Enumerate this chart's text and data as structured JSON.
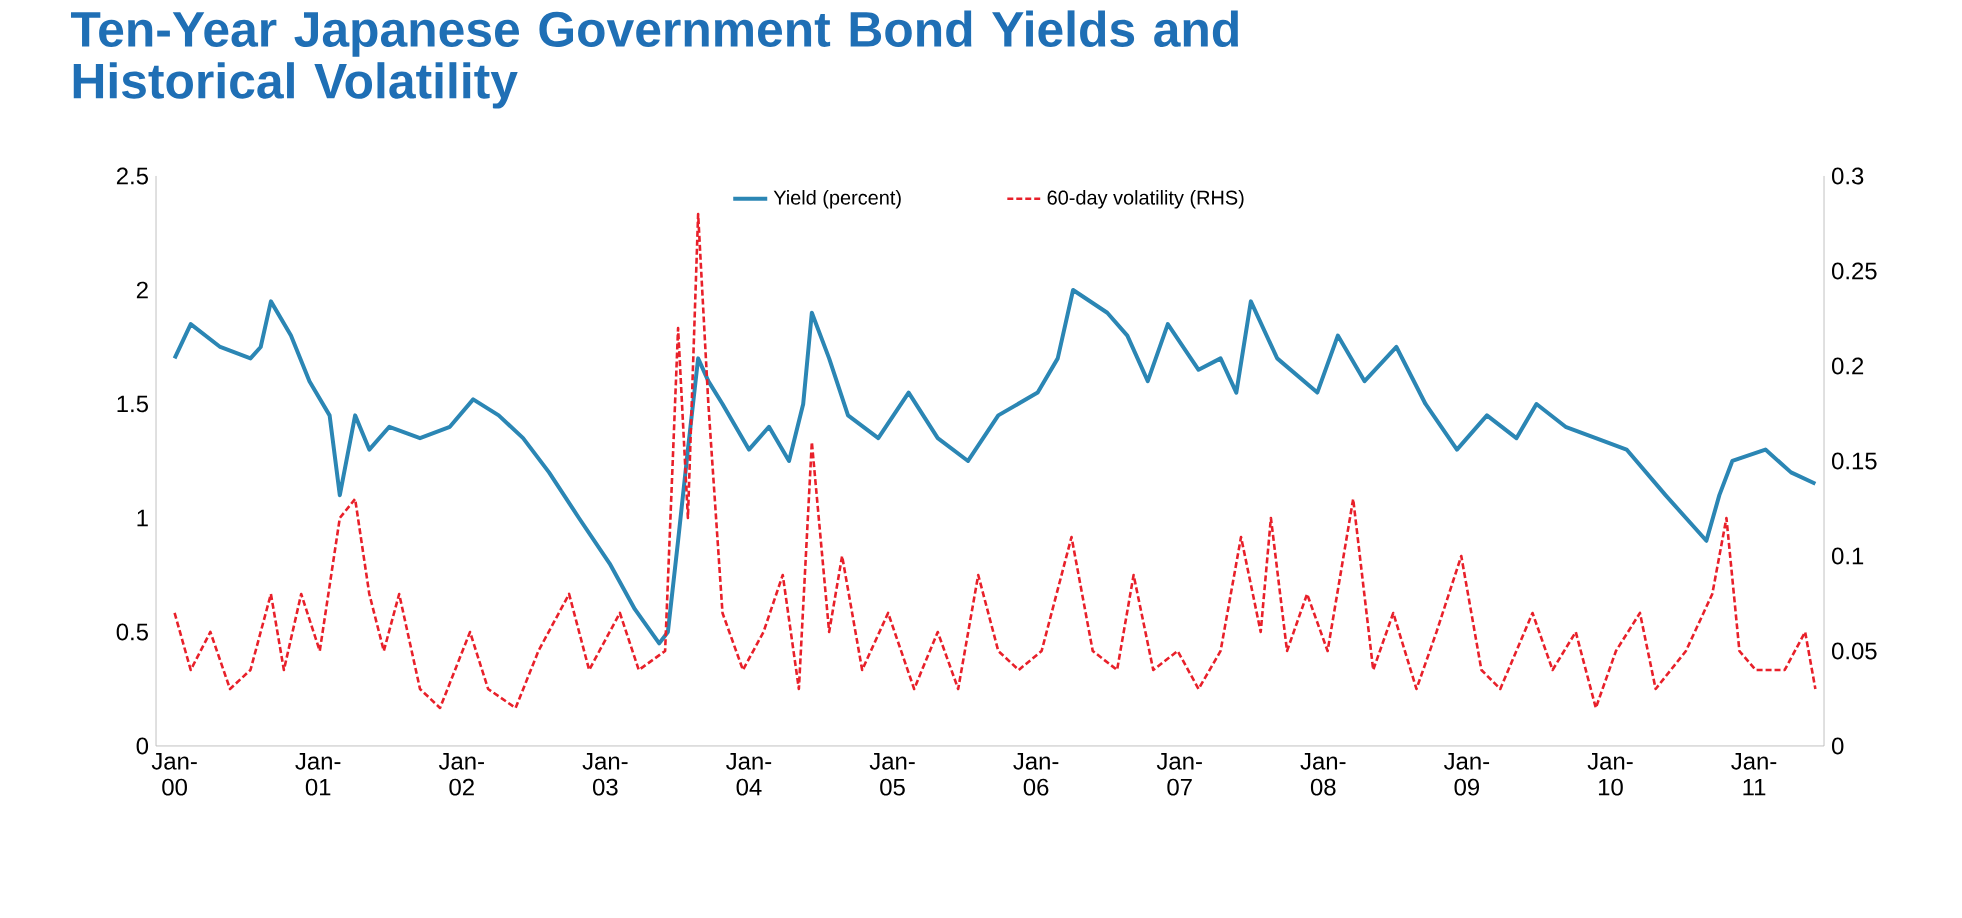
{
  "chart_data": {
    "type": "line",
    "title": "Ten-Year Japanese Government Bond Yields and Historical Volatility",
    "legend": "top",
    "marker": "none",
    "grid": false,
    "xlim": [
      "1999-11-15",
      "2011-06-28"
    ],
    "xticks": [
      {
        "value": "2000-01",
        "label": "Jan-00"
      },
      {
        "value": "2001-01",
        "label": "Jan-01"
      },
      {
        "value": "2002-01",
        "label": "Jan-02"
      },
      {
        "value": "2003-01",
        "label": "Jan-03"
      },
      {
        "value": "2004-01",
        "label": "Jan-04"
      },
      {
        "value": "2005-01",
        "label": "Jan-05"
      },
      {
        "value": "2006-01",
        "label": "Jan-06"
      },
      {
        "value": "2007-01",
        "label": "Jan-07"
      },
      {
        "value": "2008-01",
        "label": "Jan-08"
      },
      {
        "value": "2009-01",
        "label": "Jan-09"
      },
      {
        "value": "2010-01",
        "label": "Jan-10"
      },
      {
        "value": "2011-01",
        "label": "Jan-11"
      }
    ],
    "ylim": [
      0,
      2.5
    ],
    "yticks": [
      0,
      0.5,
      1,
      1.5,
      2,
      2.5
    ],
    "y2lim": [
      0,
      0.3
    ],
    "y2ticks": [
      0,
      0.05,
      0.1,
      0.15,
      0.2,
      0.25,
      0.3
    ],
    "series": [
      {
        "name": "Yield (percent)",
        "color": "#2b86b4",
        "line_style": "solid",
        "x": [
          "2000-01-01",
          "2000-02-11",
          "2000-04-26",
          "2000-07-12",
          "2000-08-07",
          "2000-09-02",
          "2000-10-23",
          "2000-12-09",
          "2001-01-30",
          "2001-02-25",
          "2001-04-05",
          "2001-05-11",
          "2001-07-01",
          "2001-09-17",
          "2001-12-02",
          "2002-01-30",
          "2002-04-05",
          "2002-06-06",
          "2002-08-11",
          "2002-10-26",
          "2003-01-12",
          "2003-03-17",
          "2003-05-18",
          "2003-06-09",
          "2003-07-05",
          "2003-07-30",
          "2003-08-25",
          "2003-09-20",
          "2003-10-26",
          "2004-01-01",
          "2004-02-21",
          "2004-04-12",
          "2004-05-18",
          "2004-06-09",
          "2004-07-23",
          "2004-09-09",
          "2004-11-25",
          "2005-02-11",
          "2005-04-26",
          "2005-07-12",
          "2005-09-27",
          "2006-01-05",
          "2006-02-25",
          "2006-04-05",
          "2006-07-01",
          "2006-08-21",
          "2006-10-12",
          "2006-12-02",
          "2007-02-18",
          "2007-04-15",
          "2007-05-25",
          "2007-07-01",
          "2007-09-06",
          "2007-12-17",
          "2008-02-07",
          "2008-04-15",
          "2008-07-05",
          "2008-09-17",
          "2008-12-06",
          "2009-02-21",
          "2009-05-07",
          "2009-06-27",
          "2009-09-09",
          "2009-11-25",
          "2010-02-11",
          "2010-05-21",
          "2010-09-02",
          "2010-10-05",
          "2010-11-07",
          "2011-01-30",
          "2011-04-05",
          "2011-06-06"
        ],
        "values": [
          1.7,
          1.85,
          1.75,
          1.7,
          1.75,
          1.95,
          1.8,
          1.6,
          1.45,
          1.1,
          1.45,
          1.3,
          1.4,
          1.35,
          1.4,
          1.52,
          1.45,
          1.35,
          1.2,
          1.0,
          0.8,
          0.6,
          0.45,
          0.5,
          0.9,
          1.3,
          1.7,
          1.6,
          1.5,
          1.3,
          1.4,
          1.25,
          1.5,
          1.9,
          1.7,
          1.45,
          1.35,
          1.55,
          1.35,
          1.25,
          1.45,
          1.55,
          1.7,
          2.0,
          1.9,
          1.8,
          1.6,
          1.85,
          1.65,
          1.7,
          1.55,
          1.95,
          1.7,
          1.55,
          1.8,
          1.6,
          1.75,
          1.5,
          1.3,
          1.45,
          1.35,
          1.5,
          1.4,
          1.35,
          1.3,
          1.1,
          0.9,
          1.1,
          1.25,
          1.3,
          1.2,
          1.15
        ]
      },
      {
        "name": "60-day volatility (RHS)",
        "color": "#e8202a",
        "axis": "y2",
        "line_style": "dashed",
        "x": [
          "2000-01-01",
          "2000-02-11",
          "2000-04-01",
          "2000-05-21",
          "2000-07-12",
          "2000-09-02",
          "2000-10-05",
          "2000-11-18",
          "2001-01-05",
          "2001-02-25",
          "2001-04-05",
          "2001-05-11",
          "2001-06-17",
          "2001-07-26",
          "2001-09-17",
          "2001-11-07",
          "2002-01-22",
          "2002-03-09",
          "2002-05-18",
          "2002-07-15",
          "2002-10-01",
          "2002-11-21",
          "2003-02-07",
          "2003-03-27",
          "2003-06-02",
          "2003-07-05",
          "2003-07-30",
          "2003-08-25",
          "2003-09-20",
          "2003-10-26",
          "2003-12-17",
          "2004-02-07",
          "2004-03-27",
          "2004-05-07",
          "2004-06-09",
          "2004-07-23",
          "2004-08-25",
          "2004-10-15",
          "2004-12-20",
          "2005-02-25",
          "2005-04-26",
          "2005-06-17",
          "2005-08-07",
          "2005-09-27",
          "2005-11-18",
          "2006-01-15",
          "2006-04-01",
          "2006-05-25",
          "2006-07-26",
          "2006-09-06",
          "2006-10-26",
          "2006-12-27",
          "2007-02-18",
          "2007-04-15",
          "2007-06-06",
          "2007-07-26",
          "2007-08-21",
          "2007-10-01",
          "2007-11-21",
          "2008-01-12",
          "2008-03-17",
          "2008-05-07",
          "2008-06-27",
          "2008-08-25",
          "2008-10-15",
          "2008-12-17",
          "2009-02-07",
          "2009-03-27",
          "2009-06-17",
          "2009-08-07",
          "2009-10-05",
          "2009-11-25",
          "2010-01-15",
          "2010-03-17",
          "2010-04-26",
          "2010-07-12",
          "2010-09-17",
          "2010-10-23",
          "2010-11-25",
          "2011-01-05",
          "2011-03-20",
          "2011-05-11",
          "2011-06-06"
        ],
        "values": [
          0.07,
          0.04,
          0.06,
          0.03,
          0.04,
          0.08,
          0.04,
          0.08,
          0.05,
          0.12,
          0.13,
          0.08,
          0.05,
          0.08,
          0.03,
          0.02,
          0.06,
          0.03,
          0.02,
          0.05,
          0.08,
          0.04,
          0.07,
          0.04,
          0.05,
          0.22,
          0.12,
          0.28,
          0.18,
          0.07,
          0.04,
          0.06,
          0.09,
          0.03,
          0.16,
          0.06,
          0.1,
          0.04,
          0.07,
          0.03,
          0.06,
          0.03,
          0.09,
          0.05,
          0.04,
          0.05,
          0.11,
          0.05,
          0.04,
          0.09,
          0.04,
          0.05,
          0.03,
          0.05,
          0.11,
          0.06,
          0.12,
          0.05,
          0.08,
          0.05,
          0.13,
          0.04,
          0.07,
          0.03,
          0.06,
          0.1,
          0.04,
          0.03,
          0.07,
          0.04,
          0.06,
          0.02,
          0.05,
          0.07,
          0.03,
          0.05,
          0.08,
          0.12,
          0.05,
          0.04,
          0.04,
          0.06,
          0.03
        ]
      }
    ]
  }
}
